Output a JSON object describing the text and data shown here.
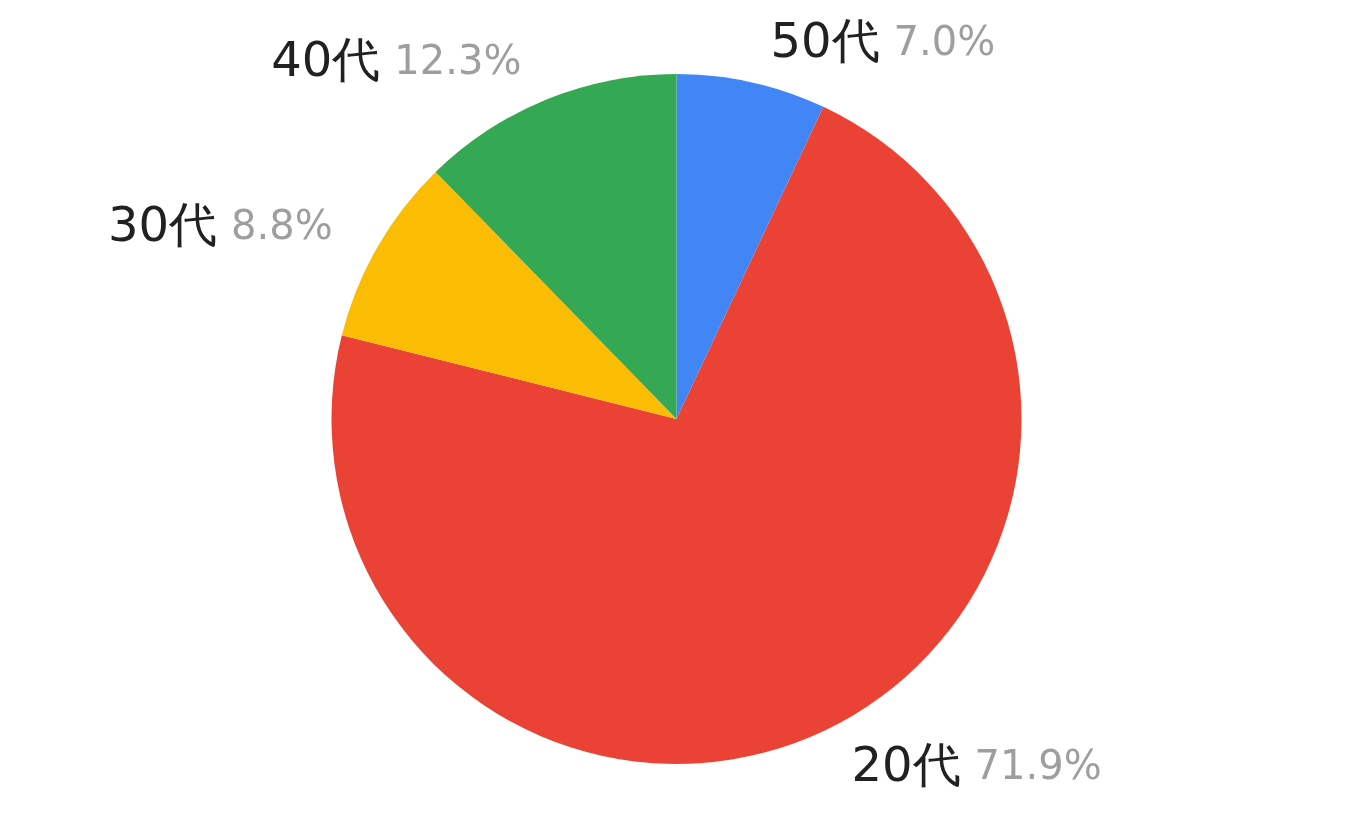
{
  "chart_data": {
    "type": "pie",
    "categories": [
      "50代",
      "20代",
      "30代",
      "40代"
    ],
    "values": [
      7.0,
      71.9,
      8.8,
      12.3
    ],
    "value_labels": [
      "7.0%",
      "71.9%",
      "8.8%",
      "12.3%"
    ],
    "colors": [
      "#4285f4",
      "#ea4335",
      "#fbbc04",
      "#34a853"
    ]
  }
}
